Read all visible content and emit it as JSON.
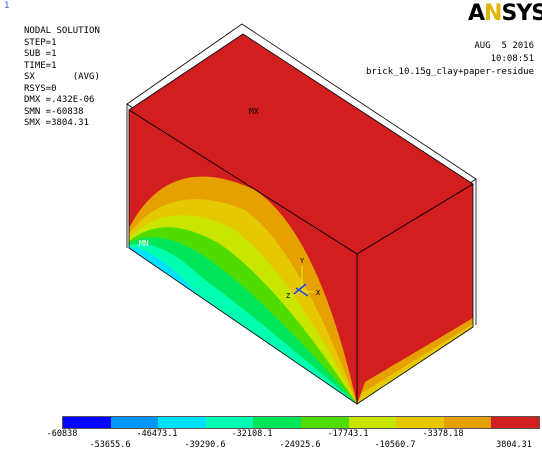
{
  "window": {
    "number": "1"
  },
  "logo": {
    "text": "ANSYS"
  },
  "info": {
    "lines": [
      "NODAL SOLUTION",
      "",
      "STEP=1",
      "SUB =1",
      "TIME=1",
      "SX       (AVG)",
      "RSYS=0",
      "DMX =.432E-06",
      "SMN =-60838",
      "SMX =3804.31"
    ]
  },
  "header_right": {
    "date": "AUG  5 2016",
    "time": "10:08:51",
    "title": "brick_10.15g_clay+paper-residue"
  },
  "markers": {
    "mx": "MX",
    "mn": "MN"
  },
  "triad": {
    "x": "X",
    "y": "Y",
    "z": "Z"
  },
  "colors": {
    "bands": [
      "#0000ff",
      "#0096ff",
      "#00e0ff",
      "#00ffb0",
      "#00e65a",
      "#50dc00",
      "#c8e600",
      "#e6c800",
      "#e6a000",
      "#d21e1e"
    ],
    "outline": "#000000"
  },
  "legend": {
    "top_labels": [
      "-60838",
      "-46473.1",
      "-32108.1",
      "-17743.1",
      "-3378.18"
    ],
    "bottom_labels": [
      "-53655.6",
      "-39290.6",
      "-24925.6",
      "-10560.7",
      "3804.31"
    ]
  }
}
